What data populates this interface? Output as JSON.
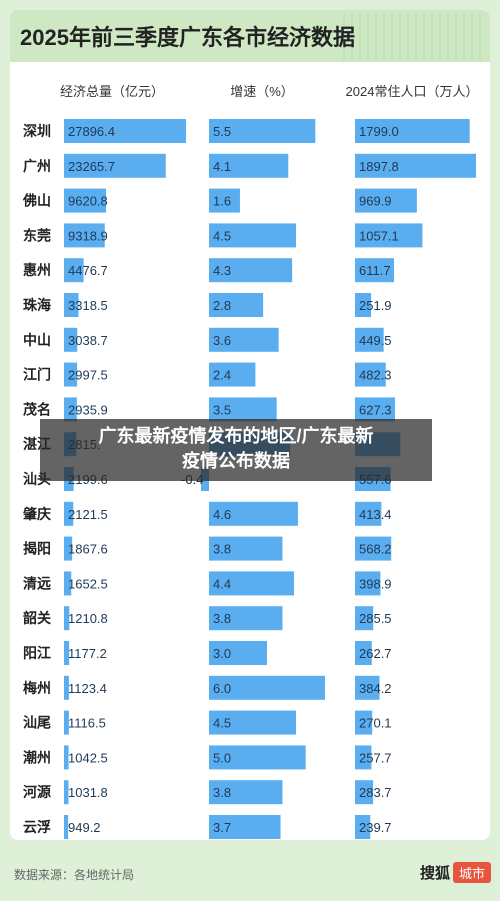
{
  "header": {
    "title": "2025年前三季度广东各市经济数据"
  },
  "overlay": {
    "line1": "广东最新疫情发布的地区/广东最新",
    "line2": "疫情公布数据"
  },
  "footer": {
    "source": "数据来源：各地统计局",
    "brand": "搜狐",
    "badge": "城市"
  },
  "colors": {
    "bar": "#5aaef0",
    "bar_text": "#1f3a55",
    "background": "#dff0d8",
    "title_bar": "#cfe8c4"
  },
  "chart_data": {
    "type": "bar",
    "orientation": "horizontal",
    "categories": [
      "深圳",
      "广州",
      "佛山",
      "东莞",
      "惠州",
      "珠海",
      "中山",
      "江门",
      "茂名",
      "湛江",
      "汕头",
      "肇庆",
      "揭阳",
      "清远",
      "韶关",
      "阳江",
      "梅州",
      "汕尾",
      "潮州",
      "河源",
      "云浮"
    ],
    "series": [
      {
        "name": "经济总量（亿元）",
        "labels": [
          "27896.4",
          "23265.7",
          "9620.8",
          "9318.9",
          "4476.7",
          "3318.5",
          "3038.7",
          "2997.5",
          "2935.9",
          "2815.",
          "2199.6",
          "2121.5",
          "1867.6",
          "1652.5",
          "1210.8",
          "1177.2",
          "1123.4",
          "1116.5",
          "1042.5",
          "1031.8",
          "949.2"
        ],
        "values": [
          27896.4,
          23265.7,
          9620.8,
          9318.9,
          4476.7,
          3318.5,
          3038.7,
          2997.5,
          2935.9,
          2815,
          2199.6,
          2121.5,
          1867.6,
          1652.5,
          1210.8,
          1177.2,
          1123.4,
          1116.5,
          1042.5,
          1031.8,
          949.2
        ]
      },
      {
        "name": "增速（%）",
        "labels": [
          "5.5",
          "4.1",
          "1.6",
          "4.5",
          "4.3",
          "2.8",
          "3.6",
          "2.4",
          "3.5",
          "",
          "-0.4",
          "4.6",
          "3.8",
          "4.4",
          "3.8",
          "3.0",
          "6.0",
          "4.5",
          "5.0",
          "3.8",
          "3.7"
        ],
        "values": [
          5.5,
          4.1,
          1.6,
          4.5,
          4.3,
          2.8,
          3.6,
          2.4,
          3.5,
          4.2,
          -0.4,
          4.6,
          3.8,
          4.4,
          3.8,
          3.0,
          6.0,
          4.5,
          5.0,
          3.8,
          3.7
        ]
      },
      {
        "name": "2024常住人口（万人）",
        "labels": [
          "1799.0",
          "1897.8",
          "969.9",
          "1057.1",
          "611.7",
          "251.9",
          "449.5",
          "482.3",
          "627.3",
          "",
          "557.6",
          "413.4",
          "568.2",
          "398.9",
          "285.5",
          "262.7",
          "384.2",
          "270.1",
          "257.7",
          "283.7",
          "239.7"
        ],
        "values": [
          1799.0,
          1897.8,
          969.9,
          1057.1,
          611.7,
          251.9,
          449.5,
          482.3,
          627.3,
          710,
          557.6,
          413.4,
          568.2,
          398.9,
          285.5,
          262.7,
          384.2,
          270.1,
          257.7,
          283.7,
          239.7
        ]
      }
    ]
  }
}
